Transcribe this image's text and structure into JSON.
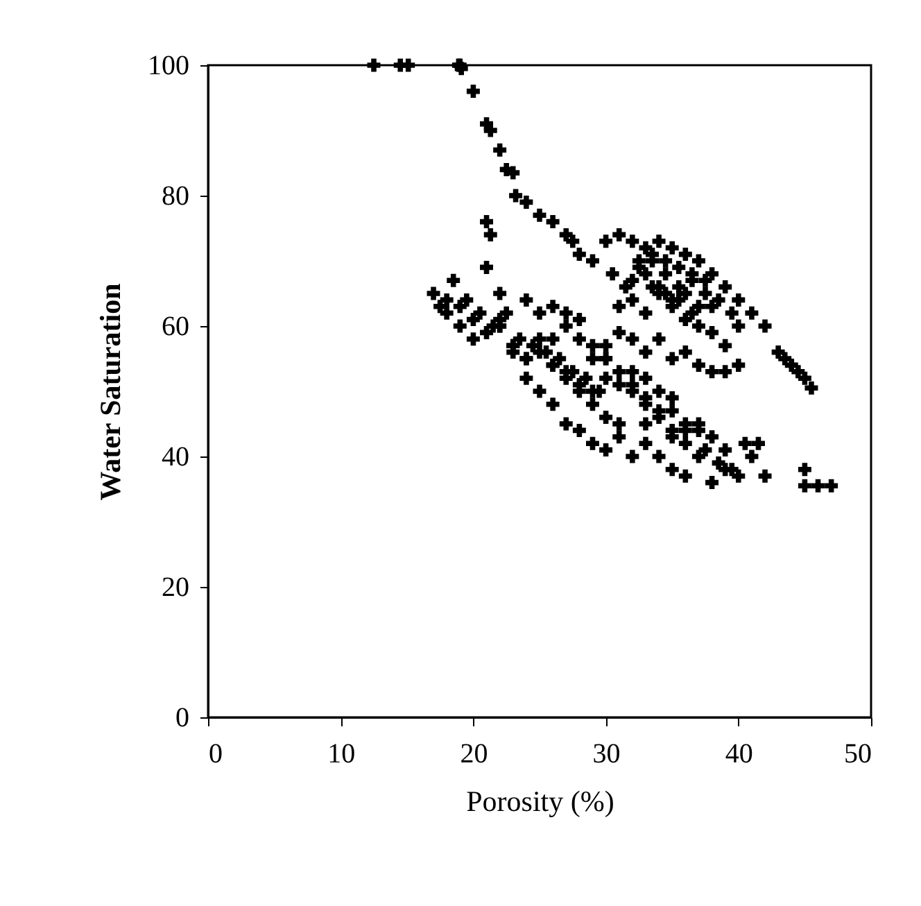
{
  "chart_data": {
    "type": "scatter",
    "xlabel": "Porosity (%)",
    "ylabel": "Water Saturation",
    "marker": "cross",
    "xlim": [
      0,
      50
    ],
    "xticks": [
      0,
      10,
      20,
      30,
      40,
      50
    ],
    "ylim": [
      0,
      100
    ],
    "yticks": [
      0,
      20,
      40,
      60,
      80,
      100
    ],
    "series": [
      {
        "color": "#000000",
        "x": [
          12.5,
          14.5,
          15.1,
          18.9,
          19.1,
          19.0,
          20.0,
          21.0,
          21.3,
          22.0,
          22.5,
          23.0,
          23.2,
          24.0,
          25.0,
          26.0,
          27.0,
          27.5,
          28.0,
          29.0,
          30.0,
          31.0,
          32.0,
          33.0,
          34.0,
          35.0,
          36.0,
          37.0,
          38.0,
          39.0,
          40.0,
          41.0,
          42.0,
          43.0,
          44.0,
          45.0,
          45.5,
          17.0,
          17.5,
          18.0,
          18.5,
          19.0,
          20.0,
          21.0,
          21.3,
          21.0,
          22.0,
          22.0,
          23.0,
          24.0,
          25.0,
          26.0,
          24.0,
          25.0,
          26.0,
          27.0,
          28.0,
          29.0,
          30.0,
          31.0,
          32.0,
          33.0,
          34.0,
          35.0,
          36.0,
          37.0,
          38.0,
          39.0,
          40.0,
          41.0,
          42.0,
          41.5,
          45.0,
          45.0,
          46.0,
          47.0,
          30.5,
          31.5,
          32.5,
          33.5,
          34.5,
          35.5,
          36.5,
          37.5,
          38.5,
          39.5,
          31.0,
          32.0,
          33.0,
          34.0,
          35.0,
          36.0,
          37.0,
          38.0,
          39.0,
          40.0,
          30.0,
          31.0,
          32.0,
          33.0,
          34.0,
          35.0,
          36.0,
          37.0,
          38.0,
          39.0,
          40.0,
          43.5,
          44.5,
          27.0,
          28.0,
          29.0,
          30.0,
          31.0,
          32.0,
          33.0,
          34.0,
          35.0,
          36.0,
          37.0,
          38.0,
          26.0,
          27.0,
          28.0,
          29.0,
          30.0,
          32.0,
          33.0,
          34.0,
          35.0,
          19.5,
          20.5,
          21.5,
          22.5,
          23.5,
          24.5,
          25.5,
          26.5,
          27.5,
          28.5,
          29.5,
          22.0,
          23.0,
          24.0,
          25.0,
          26.0,
          27.0,
          28.0,
          29.0,
          30.0,
          31.0,
          33.0,
          35.0,
          36.0,
          37.0,
          39.0,
          32.5,
          33.5,
          34.5,
          35.5,
          36.5,
          37.5,
          32.0,
          33.0,
          34.0,
          35.0,
          36.0,
          37.0,
          38.0,
          33.5,
          34.5,
          35.5,
          36.5,
          18.0,
          19.0,
          20.0,
          21.0,
          22.0,
          23.0,
          24.0,
          25.0,
          26.0,
          27.0,
          28.0,
          29.0,
          30.0,
          31.0,
          32.0,
          33.0,
          34.0,
          35.0,
          36.0,
          40.5,
          37.5,
          38.5,
          39.5
        ],
        "values": [
          100,
          100,
          100,
          100,
          99.5,
          100,
          96,
          91,
          90,
          87,
          84,
          83.5,
          80,
          79,
          77,
          76,
          74,
          73,
          71,
          70,
          73,
          74,
          73,
          72,
          73,
          72,
          71,
          70,
          68,
          66,
          64,
          62,
          60,
          56,
          54,
          52,
          50.5,
          65,
          63,
          62,
          67,
          60,
          58,
          76,
          74,
          69,
          65,
          61,
          56,
          64,
          62,
          58,
          52,
          50,
          48,
          45,
          44,
          42,
          41,
          43,
          40,
          42,
          40,
          38,
          37,
          40,
          36,
          38,
          37,
          40,
          37,
          42,
          38,
          35.5,
          35.5,
          35.5,
          68,
          66,
          69,
          70,
          68,
          66,
          67,
          65,
          64,
          62,
          63,
          64,
          62,
          65,
          63,
          61,
          60,
          59,
          57,
          60,
          57,
          59,
          58,
          56,
          58,
          55,
          56,
          54,
          53,
          53,
          54,
          55,
          53,
          60,
          58,
          55,
          52,
          51,
          50,
          48,
          46,
          47,
          45,
          44,
          43,
          63,
          62,
          61,
          57,
          55,
          53,
          52,
          50,
          49,
          64,
          62,
          60,
          62,
          58,
          57,
          56,
          55,
          53,
          52,
          50,
          60,
          57,
          55,
          56,
          54,
          52,
          50,
          48,
          46,
          45,
          45,
          43,
          42,
          45,
          41,
          70,
          71,
          70,
          69,
          68,
          67,
          67,
          68,
          66,
          64,
          65,
          63,
          63,
          66,
          65,
          64,
          62,
          64,
          63,
          61,
          59,
          60,
          57,
          55,
          58,
          54,
          53,
          51,
          50,
          55,
          53,
          51,
          49,
          47,
          44,
          44,
          42,
          41,
          39,
          38
        ]
      }
    ]
  }
}
